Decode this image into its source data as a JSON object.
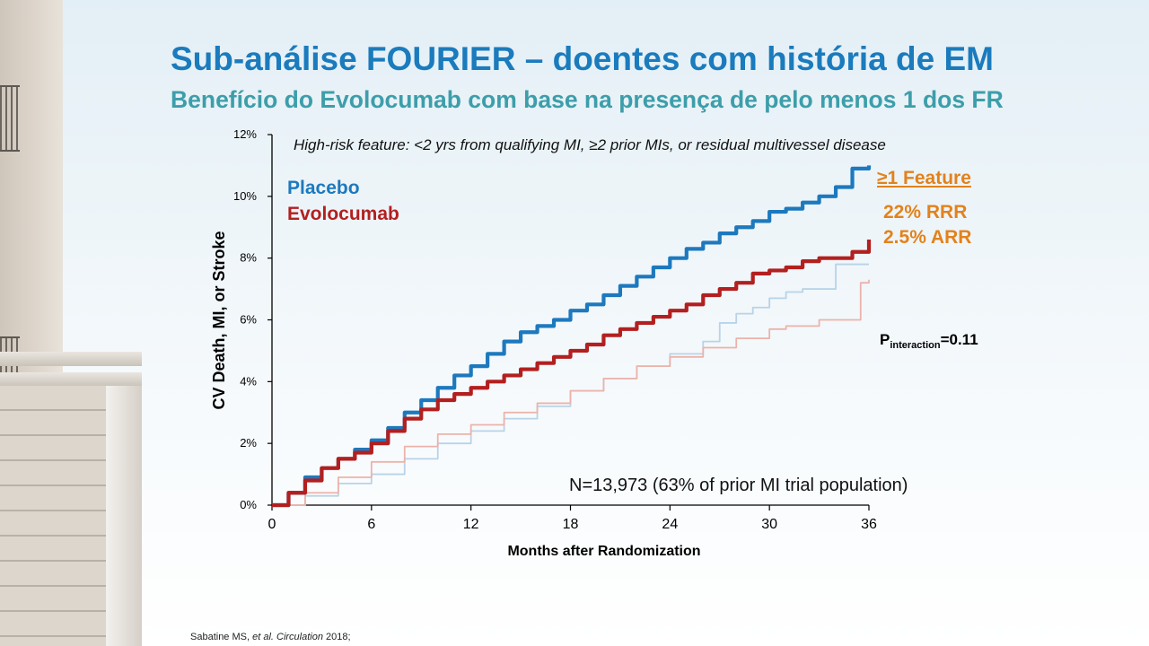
{
  "slide": {
    "title": "Sub-análise FOURIER – doentes com história de EM",
    "subtitle": "Benefício do Evolocumab com base na presença de pelo menos 1 dos FR",
    "citation_author": "Sabatine MS, ",
    "citation_etal": "et al. Circulation",
    "citation_year": " 2018;"
  },
  "chart_data": {
    "type": "line",
    "title": "",
    "annotation": "High-risk feature: <2 yrs from qualifying MI, ≥2 prior MIs, or residual multivessel disease",
    "xlabel": "Months after Randomization",
    "ylabel": "CV Death, MI, or Stroke",
    "xlim": [
      0,
      36
    ],
    "ylim": [
      0,
      12
    ],
    "x_ticks": [
      0,
      6,
      12,
      18,
      24,
      30,
      36
    ],
    "y_ticks": [
      0,
      2,
      4,
      6,
      8,
      10,
      12
    ],
    "y_tick_labels": [
      "0%",
      "2%",
      "4%",
      "6%",
      "8%",
      "10%",
      "12%"
    ],
    "legend": {
      "placement": "top-left",
      "entries": [
        "Placebo",
        "Evolocumab"
      ]
    },
    "colors": {
      "placebo": "#1d79be",
      "evolocumab": "#b31f1f",
      "placebo_no_feature": "#b8d3e8",
      "evolocumab_no_feature": "#ecb3aa",
      "feature_text": "#e2821c"
    },
    "series": [
      {
        "name": "Placebo",
        "group": "≥1 Feature",
        "x": [
          0,
          1,
          2,
          3,
          4,
          5,
          6,
          7,
          8,
          9,
          10,
          11,
          12,
          13,
          14,
          15,
          16,
          17,
          18,
          19,
          20,
          21,
          22,
          23,
          24,
          25,
          26,
          27,
          28,
          29,
          30,
          31,
          32,
          33,
          34,
          35,
          36
        ],
        "y": [
          0,
          0.4,
          0.9,
          1.2,
          1.5,
          1.8,
          2.1,
          2.5,
          3.0,
          3.4,
          3.8,
          4.2,
          4.5,
          4.9,
          5.3,
          5.6,
          5.8,
          6.0,
          6.3,
          6.5,
          6.8,
          7.1,
          7.4,
          7.7,
          8.0,
          8.3,
          8.5,
          8.8,
          9.0,
          9.2,
          9.5,
          9.6,
          9.8,
          10.0,
          10.3,
          10.9,
          11.0
        ]
      },
      {
        "name": "Evolocumab",
        "group": "≥1 Feature",
        "x": [
          0,
          1,
          2,
          3,
          4,
          5,
          6,
          7,
          8,
          9,
          10,
          11,
          12,
          13,
          14,
          15,
          16,
          17,
          18,
          19,
          20,
          21,
          22,
          23,
          24,
          25,
          26,
          27,
          28,
          29,
          30,
          31,
          32,
          33,
          34,
          35,
          36
        ],
        "y": [
          0,
          0.4,
          0.8,
          1.2,
          1.5,
          1.7,
          2.0,
          2.4,
          2.8,
          3.1,
          3.4,
          3.6,
          3.8,
          4.0,
          4.2,
          4.4,
          4.6,
          4.8,
          5.0,
          5.2,
          5.5,
          5.7,
          5.9,
          6.1,
          6.3,
          6.5,
          6.8,
          7.0,
          7.2,
          7.5,
          7.6,
          7.7,
          7.9,
          8.0,
          8.0,
          8.2,
          8.6
        ]
      },
      {
        "name": "Placebo",
        "group": "No feature",
        "x": [
          0,
          2,
          4,
          6,
          8,
          10,
          12,
          14,
          16,
          18,
          20,
          22,
          24,
          26,
          27,
          28,
          29,
          30,
          31,
          32,
          33,
          34,
          35,
          36
        ],
        "y": [
          0,
          0.3,
          0.7,
          1.0,
          1.5,
          2.0,
          2.4,
          2.8,
          3.2,
          3.7,
          4.1,
          4.5,
          4.9,
          5.3,
          5.9,
          6.2,
          6.4,
          6.7,
          6.9,
          7.0,
          7.0,
          7.8,
          7.8,
          7.8
        ]
      },
      {
        "name": "Evolocumab",
        "group": "No feature",
        "x": [
          0,
          2,
          4,
          6,
          8,
          10,
          12,
          14,
          16,
          18,
          20,
          22,
          24,
          26,
          28,
          30,
          31,
          32,
          33,
          34,
          35,
          35.5,
          36
        ],
        "y": [
          0,
          0.4,
          0.9,
          1.4,
          1.9,
          2.3,
          2.6,
          3.0,
          3.3,
          3.7,
          4.1,
          4.5,
          4.8,
          5.1,
          5.4,
          5.7,
          5.8,
          5.8,
          6.0,
          6.0,
          6.0,
          7.2,
          7.3
        ]
      }
    ],
    "feature_label": "≥1 Feature",
    "rrr": "22% RRR",
    "arr": "2.5% ARR",
    "p_interaction_prefix": "P",
    "p_interaction_sub": "interaction",
    "p_interaction_value": "=0.11",
    "n_note": "N=13,973 (63% of prior MI trial population)"
  }
}
